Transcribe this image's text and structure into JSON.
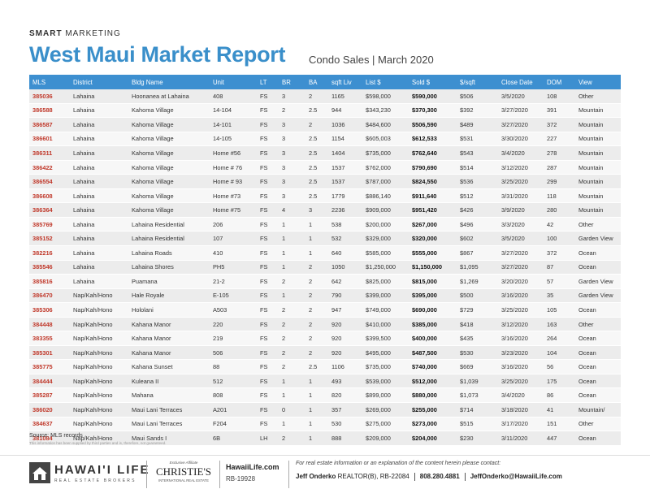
{
  "header": {
    "brand_bold": "SMART",
    "brand_rest": "MARKETING",
    "title": "West Maui Market Report",
    "subtitle": "Condo Sales | March 2020"
  },
  "table": {
    "columns": [
      "MLS",
      "District",
      "Bldg Name",
      "Unit",
      "LT",
      "BR",
      "BA",
      "sqft Liv",
      "List $",
      "Sold $",
      "$/sqft",
      "Close Date",
      "DOM",
      "View"
    ],
    "rows": [
      [
        "385036",
        "Lahaina",
        "Hoonanea at Lahaina",
        "408",
        "FS",
        "3",
        "2",
        "1165",
        "$598,000",
        "$590,000",
        "$506",
        "3/5/2020",
        "108",
        "Other"
      ],
      [
        "386588",
        "Lahaina",
        "Kahoma Village",
        "14-104",
        "FS",
        "2",
        "2.5",
        "944",
        "$343,230",
        "$370,300",
        "$392",
        "3/27/2020",
        "391",
        "Mountain"
      ],
      [
        "386587",
        "Lahaina",
        "Kahoma Village",
        "14-101",
        "FS",
        "3",
        "2",
        "1036",
        "$484,600",
        "$506,590",
        "$489",
        "3/27/2020",
        "372",
        "Mountain"
      ],
      [
        "386601",
        "Lahaina",
        "Kahoma Village",
        "14-105",
        "FS",
        "3",
        "2.5",
        "1154",
        "$605,003",
        "$612,533",
        "$531",
        "3/30/2020",
        "227",
        "Mountain"
      ],
      [
        "386311",
        "Lahaina",
        "Kahoma Village",
        "Home #56",
        "FS",
        "3",
        "2.5",
        "1404",
        "$735,000",
        "$762,640",
        "$543",
        "3/4/2020",
        "278",
        "Mountain"
      ],
      [
        "386422",
        "Lahaina",
        "Kahoma Village",
        "Home # 76",
        "FS",
        "3",
        "2.5",
        "1537",
        "$762,000",
        "$790,690",
        "$514",
        "3/12/2020",
        "287",
        "Mountain"
      ],
      [
        "386554",
        "Lahaina",
        "Kahoma Village",
        "Home # 93",
        "FS",
        "3",
        "2.5",
        "1537",
        "$787,000",
        "$824,550",
        "$536",
        "3/25/2020",
        "299",
        "Mountain"
      ],
      [
        "386608",
        "Lahaina",
        "Kahoma Village",
        "Home #73",
        "FS",
        "3",
        "2.5",
        "1779",
        "$886,140",
        "$911,640",
        "$512",
        "3/31/2020",
        "118",
        "Mountain"
      ],
      [
        "386364",
        "Lahaina",
        "Kahoma Village",
        "Home #75",
        "FS",
        "4",
        "3",
        "2236",
        "$909,000",
        "$951,420",
        "$426",
        "3/9/2020",
        "280",
        "Mountain"
      ],
      [
        "385769",
        "Lahaina",
        "Lahaina Residential",
        "206",
        "FS",
        "1",
        "1",
        "538",
        "$200,000",
        "$267,000",
        "$496",
        "3/3/2020",
        "42",
        "Other"
      ],
      [
        "385152",
        "Lahaina",
        "Lahaina Residential",
        "107",
        "FS",
        "1",
        "1",
        "532",
        "$329,000",
        "$320,000",
        "$602",
        "3/5/2020",
        "100",
        "Garden View"
      ],
      [
        "382216",
        "Lahaina",
        "Lahaina Roads",
        "410",
        "FS",
        "1",
        "1",
        "640",
        "$585,000",
        "$555,000",
        "$867",
        "3/27/2020",
        "372",
        "Ocean"
      ],
      [
        "385546",
        "Lahaina",
        "Lahaina Shores",
        "PH5",
        "FS",
        "1",
        "2",
        "1050",
        "$1,250,000",
        "$1,150,000",
        "$1,095",
        "3/27/2020",
        "87",
        "Ocean"
      ],
      [
        "385816",
        "Lahaina",
        "Puamana",
        "21-2",
        "FS",
        "2",
        "2",
        "642",
        "$825,000",
        "$815,000",
        "$1,269",
        "3/20/2020",
        "57",
        "Garden View"
      ],
      [
        "386470",
        "Nap/Kah/Hono",
        "Hale Royale",
        "E-105",
        "FS",
        "1",
        "2",
        "790",
        "$399,000",
        "$395,000",
        "$500",
        "3/16/2020",
        "35",
        "Garden View"
      ],
      [
        "385306",
        "Nap/Kah/Hono",
        "Hololani",
        "A503",
        "FS",
        "2",
        "2",
        "947",
        "$749,000",
        "$690,000",
        "$729",
        "3/25/2020",
        "105",
        "Ocean"
      ],
      [
        "384448",
        "Nap/Kah/Hono",
        "Kahana Manor",
        "220",
        "FS",
        "2",
        "2",
        "920",
        "$410,000",
        "$385,000",
        "$418",
        "3/12/2020",
        "163",
        "Other"
      ],
      [
        "383355",
        "Nap/Kah/Hono",
        "Kahana Manor",
        "219",
        "FS",
        "2",
        "2",
        "920",
        "$399,500",
        "$400,000",
        "$435",
        "3/16/2020",
        "264",
        "Ocean"
      ],
      [
        "385301",
        "Nap/Kah/Hono",
        "Kahana Manor",
        "506",
        "FS",
        "2",
        "2",
        "920",
        "$495,000",
        "$487,500",
        "$530",
        "3/23/2020",
        "104",
        "Ocean"
      ],
      [
        "385775",
        "Nap/Kah/Hono",
        "Kahana Sunset",
        "88",
        "FS",
        "2",
        "2.5",
        "1106",
        "$735,000",
        "$740,000",
        "$669",
        "3/16/2020",
        "56",
        "Ocean"
      ],
      [
        "384444",
        "Nap/Kah/Hono",
        "Kuleana II",
        "512",
        "FS",
        "1",
        "1",
        "493",
        "$539,000",
        "$512,000",
        "$1,039",
        "3/25/2020",
        "175",
        "Ocean"
      ],
      [
        "385287",
        "Nap/Kah/Hono",
        "Mahana",
        "808",
        "FS",
        "1",
        "1",
        "820",
        "$899,000",
        "$880,000",
        "$1,073",
        "3/4/2020",
        "86",
        "Ocean"
      ],
      [
        "386020",
        "Nap/Kah/Hono",
        "Maui Lani Terraces",
        "A201",
        "FS",
        "0",
        "1",
        "357",
        "$269,000",
        "$255,000",
        "$714",
        "3/18/2020",
        "41",
        "Mountain/"
      ],
      [
        "384637",
        "Nap/Kah/Hono",
        "Maui Lani Terraces",
        "F204",
        "FS",
        "1",
        "1",
        "530",
        "$275,000",
        "$273,000",
        "$515",
        "3/17/2020",
        "151",
        "Other"
      ],
      [
        "381084",
        "Nap/Kah/Hono",
        "Maui Sands I",
        "6B",
        "LH",
        "2",
        "1",
        "888",
        "$209,000",
        "$204,000",
        "$230",
        "3/11/2020",
        "447",
        "Ocean"
      ]
    ]
  },
  "notes": {
    "source": "Source: MLS records",
    "disclaimer": "This information has been supplied by third parties and is, therefore, not guaranteed."
  },
  "footer": {
    "logo": "HAWAI'I LIFE",
    "logo_sub": "REAL ESTATE BROKERS",
    "affiliate": "Exclusive Affiliate",
    "christies": "CHRISTIE'S",
    "christies_sub": "INTERNATIONAL REAL ESTATE",
    "website": "HawaiiLife.com",
    "license": "RB-19928",
    "contact_intro": "For real estate information or an explanation of the content herein please contact:",
    "agent": "Jeff Onderko",
    "agent_cred": "REALTOR(B), RB-22084",
    "phone": "808.280.4881",
    "email": "JeffOnderko@HawaiiLife.com"
  }
}
